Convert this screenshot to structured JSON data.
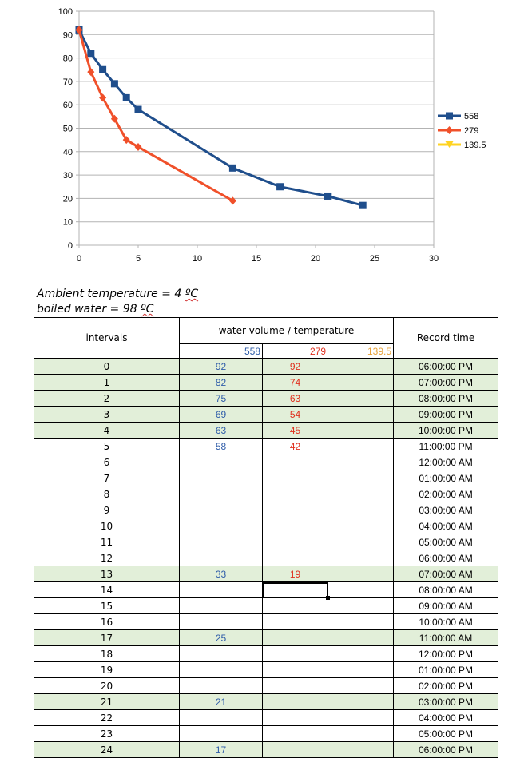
{
  "chart_data": {
    "type": "line",
    "xlim": [
      0,
      30
    ],
    "ylim": [
      0,
      100
    ],
    "x_ticks": [
      0,
      5,
      10,
      15,
      20,
      25,
      30
    ],
    "y_ticks": [
      0,
      10,
      20,
      30,
      40,
      50,
      60,
      70,
      80,
      90,
      100
    ],
    "grid": "horizontal",
    "legend_position": "right",
    "series": [
      {
        "name": "558",
        "color": "#1f4e8c",
        "marker": "square",
        "x": [
          0,
          1,
          2,
          3,
          4,
          5,
          13,
          17,
          21,
          24
        ],
        "y": [
          92,
          82,
          75,
          69,
          63,
          58,
          33,
          25,
          21,
          17
        ]
      },
      {
        "name": "279",
        "color": "#f0502a",
        "marker": "diamond",
        "x": [
          0,
          1,
          2,
          3,
          4,
          5,
          13
        ],
        "y": [
          92,
          74,
          63,
          54,
          45,
          42,
          19
        ]
      },
      {
        "name": "139.5",
        "color": "#ffd320",
        "marker": "triangle",
        "x": [],
        "y": []
      }
    ]
  },
  "notes": {
    "ambient_prefix": "Ambient temperature = 4 ",
    "ambient_unit": "ºC",
    "boiled_prefix": "boiled water = 98 ",
    "boiled_unit": "ºC"
  },
  "table": {
    "header_intervals": "intervals",
    "header_volume": "water volume / temperature",
    "header_time": "Record time",
    "volumes": [
      "558",
      "279",
      "139.5"
    ],
    "rows": [
      {
        "interval": "0",
        "v558": "92",
        "v279": "92",
        "v139": "",
        "time": "06:00:00 PM",
        "hl": true
      },
      {
        "interval": "1",
        "v558": "82",
        "v279": "74",
        "v139": "",
        "time": "07:00:00 PM",
        "hl": true
      },
      {
        "interval": "2",
        "v558": "75",
        "v279": "63",
        "v139": "",
        "time": "08:00:00 PM",
        "hl": true
      },
      {
        "interval": "3",
        "v558": "69",
        "v279": "54",
        "v139": "",
        "time": "09:00:00 PM",
        "hl": true
      },
      {
        "interval": "4",
        "v558": "63",
        "v279": "45",
        "v139": "",
        "time": "10:00:00 PM",
        "hl": true
      },
      {
        "interval": "5",
        "v558": "58",
        "v279": "42",
        "v139": "",
        "time": "11:00:00 PM",
        "hl": false
      },
      {
        "interval": "6",
        "v558": "",
        "v279": "",
        "v139": "",
        "time": "12:00:00 AM",
        "hl": false
      },
      {
        "interval": "7",
        "v558": "",
        "v279": "",
        "v139": "",
        "time": "01:00:00 AM",
        "hl": false
      },
      {
        "interval": "8",
        "v558": "",
        "v279": "",
        "v139": "",
        "time": "02:00:00 AM",
        "hl": false
      },
      {
        "interval": "9",
        "v558": "",
        "v279": "",
        "v139": "",
        "time": "03:00:00 AM",
        "hl": false
      },
      {
        "interval": "10",
        "v558": "",
        "v279": "",
        "v139": "",
        "time": "04:00:00 AM",
        "hl": false
      },
      {
        "interval": "11",
        "v558": "",
        "v279": "",
        "v139": "",
        "time": "05:00:00 AM",
        "hl": false
      },
      {
        "interval": "12",
        "v558": "",
        "v279": "",
        "v139": "",
        "time": "06:00:00 AM",
        "hl": false
      },
      {
        "interval": "13",
        "v558": "33",
        "v279": "19",
        "v139": "",
        "time": "07:00:00 AM",
        "hl": true
      },
      {
        "interval": "14",
        "v558": "",
        "v279": "",
        "v139": "",
        "time": "08:00:00 AM",
        "hl": false,
        "selected": "v279"
      },
      {
        "interval": "15",
        "v558": "",
        "v279": "",
        "v139": "",
        "time": "09:00:00 AM",
        "hl": false
      },
      {
        "interval": "16",
        "v558": "",
        "v279": "",
        "v139": "",
        "time": "10:00:00 AM",
        "hl": false
      },
      {
        "interval": "17",
        "v558": "25",
        "v279": "",
        "v139": "",
        "time": "11:00:00 AM",
        "hl": true
      },
      {
        "interval": "18",
        "v558": "",
        "v279": "",
        "v139": "",
        "time": "12:00:00 PM",
        "hl": false
      },
      {
        "interval": "19",
        "v558": "",
        "v279": "",
        "v139": "",
        "time": "01:00:00 PM",
        "hl": false
      },
      {
        "interval": "20",
        "v558": "",
        "v279": "",
        "v139": "",
        "time": "02:00:00 PM",
        "hl": false
      },
      {
        "interval": "21",
        "v558": "21",
        "v279": "",
        "v139": "",
        "time": "03:00:00 PM",
        "hl": true
      },
      {
        "interval": "22",
        "v558": "",
        "v279": "",
        "v139": "",
        "time": "04:00:00 PM",
        "hl": false
      },
      {
        "interval": "23",
        "v558": "",
        "v279": "",
        "v139": "",
        "time": "05:00:00 PM",
        "hl": false
      },
      {
        "interval": "24",
        "v558": "17",
        "v279": "",
        "v139": "",
        "time": "06:00:00 PM",
        "hl": true
      }
    ]
  }
}
